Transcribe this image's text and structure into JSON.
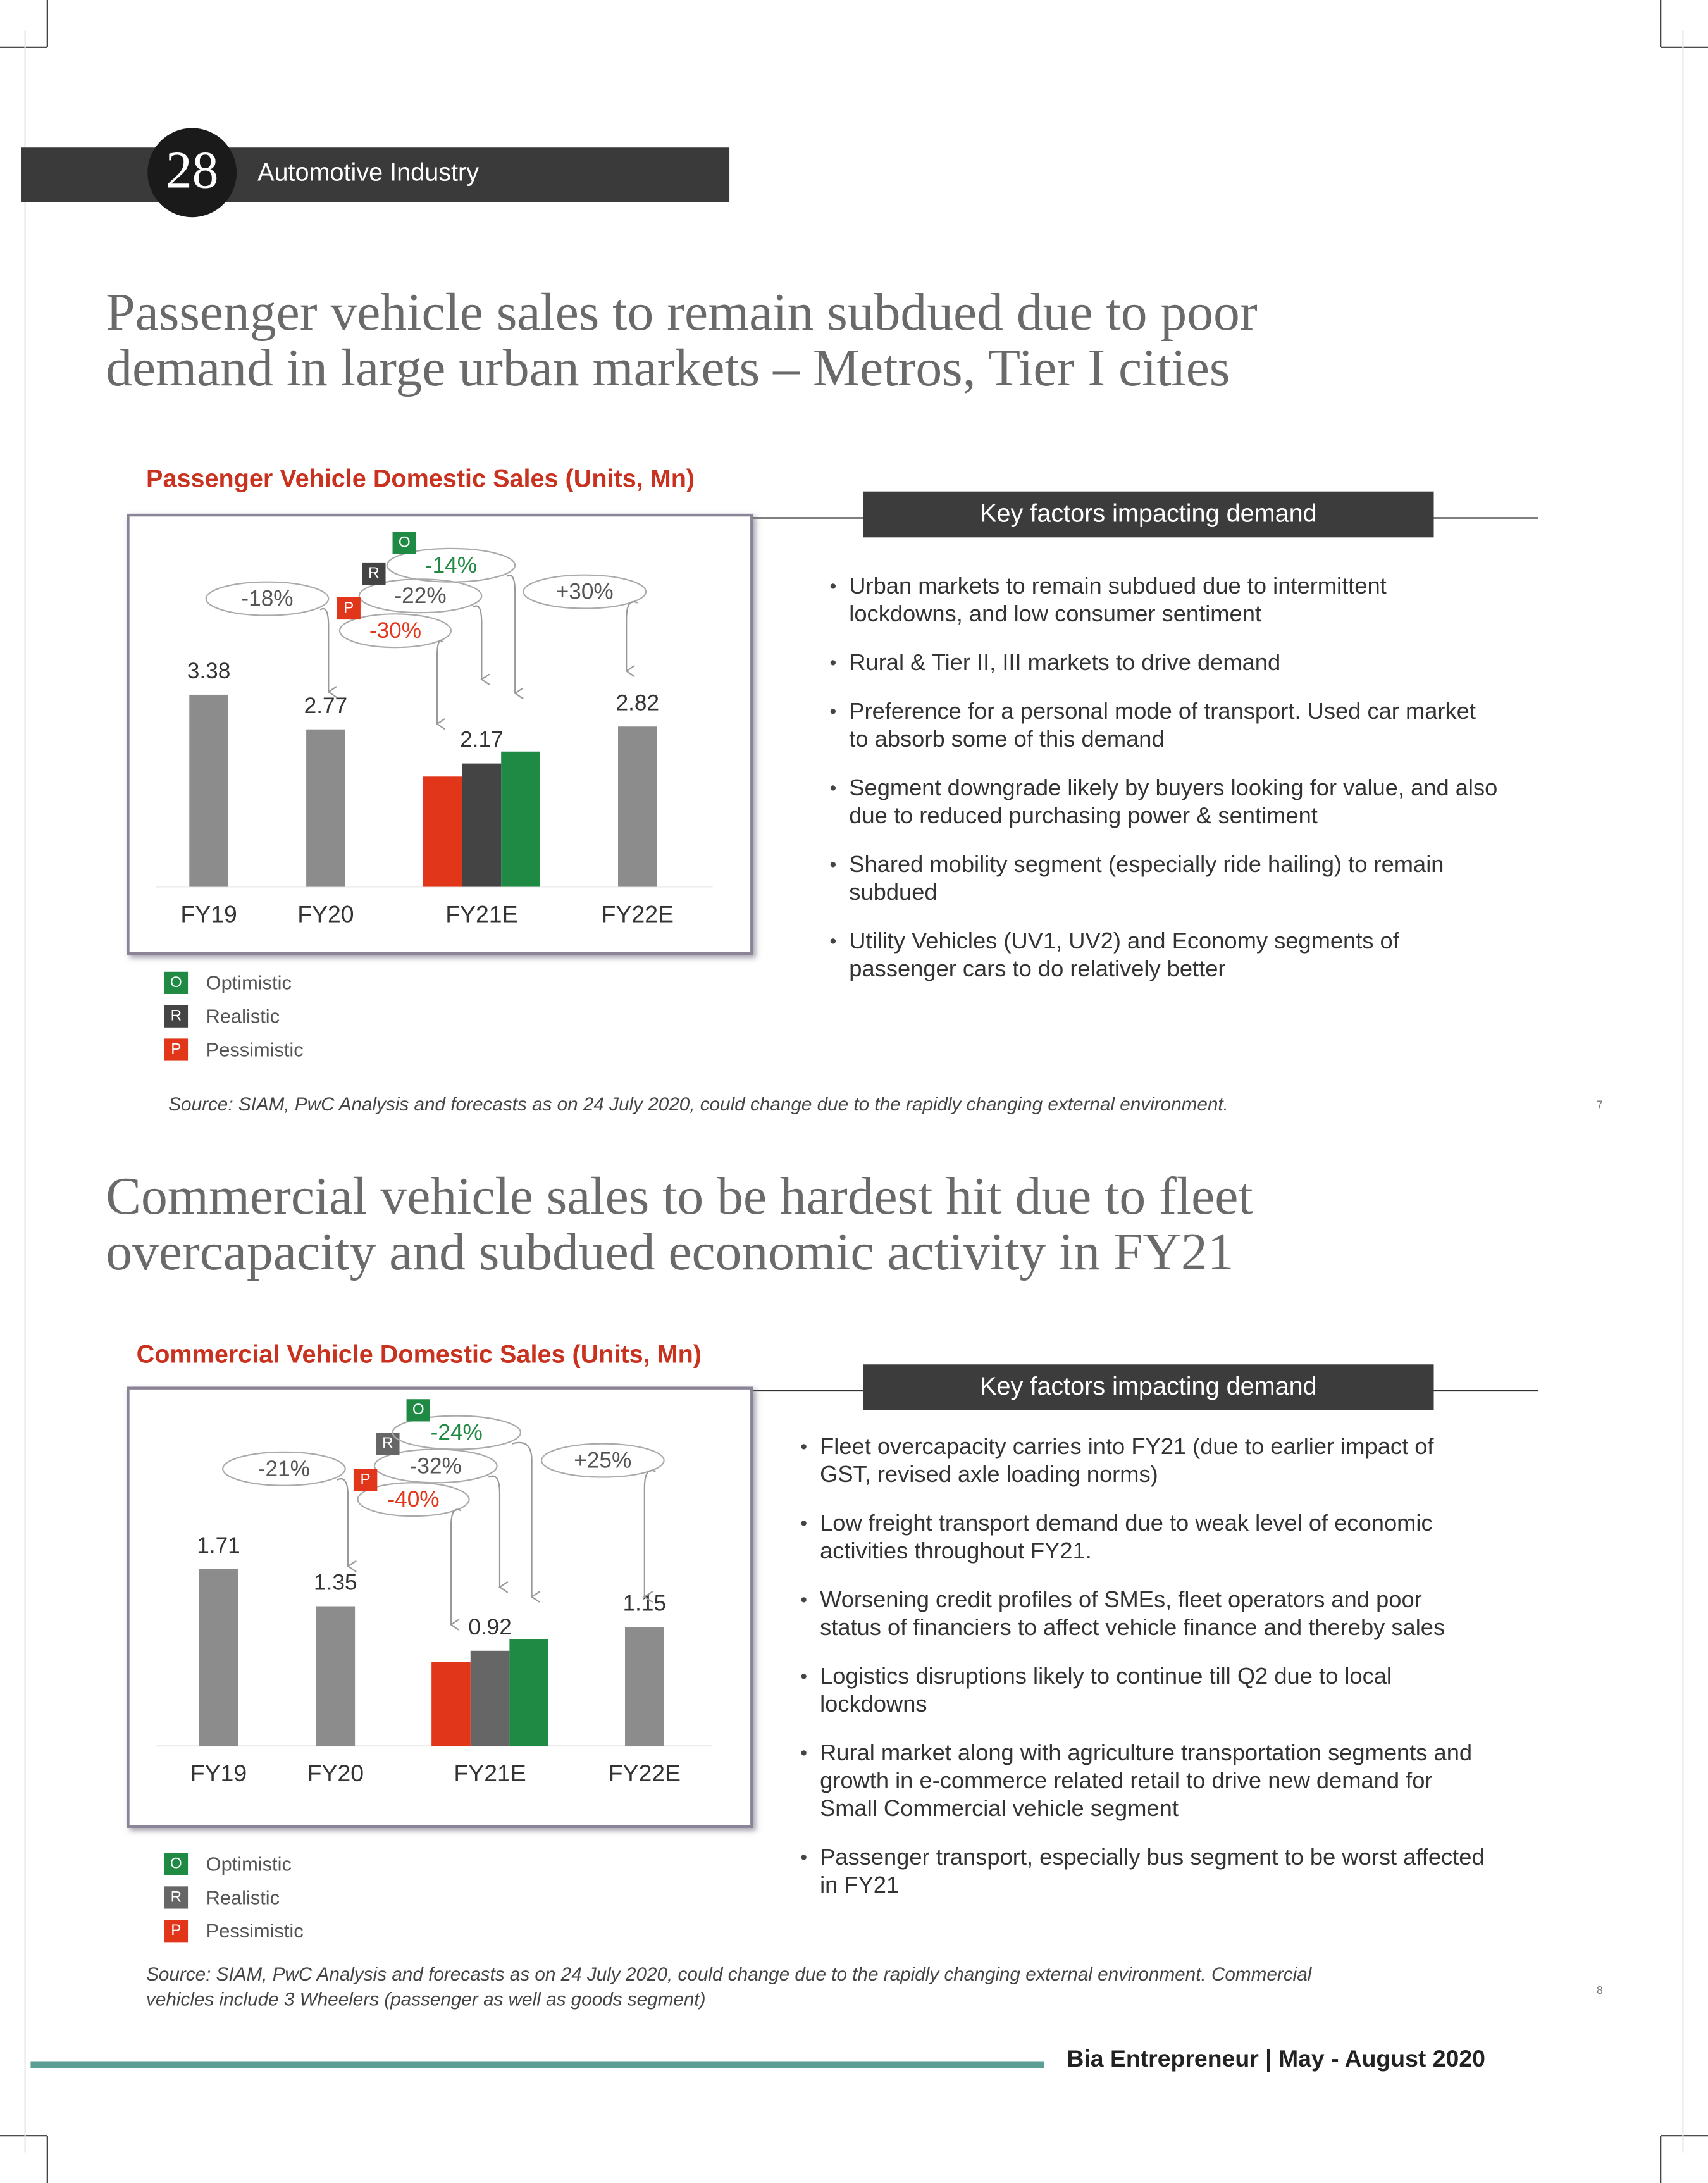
{
  "header": {
    "page_number": "28",
    "section": "Automotive Industry"
  },
  "sections": [
    {
      "heading": [
        "Passenger vehicle sales to remain subdued due to poor",
        "demand in large urban markets – Metros, Tier I cities"
      ],
      "key_factors": {
        "title": "Key factors impacting demand",
        "bullets": [
          [
            "Urban markets to remain subdued due to intermittent",
            "lockdowns, and low consumer sentiment"
          ],
          [
            "Rural & Tier II,  III  markets to drive demand"
          ],
          [
            "Preference for a  personal mode of transport. Used car market",
            "to absorb some of this demand"
          ],
          [
            "Segment downgrade likely by buyers looking for value, and also",
            "due to reduced purchasing power & sentiment"
          ],
          [
            "Shared mobility segment (especially ride hailing) to remain",
            "subdued"
          ],
          [
            "Utility Vehicles (UV1, UV2) and Economy segments of",
            "passenger cars to do relatively better"
          ]
        ]
      },
      "source": [
        "Source: SIAM, PwC Analysis and forecasts as on 24 July 2020, could change due to the rapidly changing external environment."
      ],
      "page_marker": "7"
    },
    {
      "heading": [
        "Commercial vehicle sales to be hardest hit due to fleet",
        "overcapacity and subdued economic activity in FY21"
      ],
      "key_factors": {
        "title": "Key factors impacting demand",
        "bullets": [
          [
            "Fleet overcapacity carries into FY21 (due to earlier impact of",
            "GST, revised axle loading norms)"
          ],
          [
            "Low freight transport demand due to weak level of economic",
            "activities throughout FY21."
          ],
          [
            "Worsening credit profiles of SMEs, fleet operators and poor",
            "status of financiers to affect vehicle finance and thereby sales"
          ],
          [
            "Logistics disruptions likely to continue till Q2 due to local",
            "lockdowns"
          ],
          [
            "Rural market along with agriculture transportation segments and",
            "growth in e-commerce related retail to drive new demand for",
            "Small Commercial vehicle segment"
          ],
          [
            "Passenger transport, especially bus segment to be worst affected",
            "in FY21"
          ]
        ]
      },
      "source": [
        "Source: SIAM, PwC Analysis and forecasts as on 24 July 2020, could change due to the rapidly changing external environment.  Commercial",
        "vehicles include 3 Wheelers (passenger as well as goods segment)"
      ],
      "page_marker": "8"
    }
  ],
  "chart_data": [
    {
      "type": "bar",
      "title": "Passenger Vehicle Domestic Sales (Units, Mn)",
      "categories": [
        "FY19",
        "FY20",
        "FY21E",
        "FY22E"
      ],
      "values": [
        3.38,
        2.77,
        null,
        2.82
      ],
      "color": "#8c8c8c",
      "series": [
        {
          "name": "Optimistic",
          "badge": "O",
          "color": "#1e8a44",
          "values": [
            null,
            null,
            2.38,
            null
          ]
        },
        {
          "name": "Realistic",
          "badge": "R",
          "color": "#444444",
          "values": [
            null,
            null,
            2.17,
            null
          ]
        },
        {
          "name": "Pessimistic",
          "badge": "P",
          "color": "#e2361a",
          "values": [
            null,
            null,
            1.94,
            null
          ]
        }
      ],
      "annotations": [
        {
          "text": "-18%",
          "color": "#555555"
        },
        {
          "text": "+30%",
          "color": "#555555"
        },
        {
          "text": "-22%",
          "color": "#555555"
        },
        {
          "text": "-30%",
          "color": "#e2361a"
        },
        {
          "text": "-14%",
          "color": "#1e8a44"
        }
      ]
    },
    {
      "type": "bar",
      "title": "Commercial Vehicle Domestic Sales (Units, Mn)",
      "categories": [
        "FY19",
        "FY20",
        "FY21E",
        "FY22E"
      ],
      "values": [
        1.71,
        1.35,
        null,
        1.15
      ],
      "color": "#8c8c8c",
      "series": [
        {
          "name": "Optimistic",
          "badge": "O",
          "color": "#1e8a44",
          "values": [
            null,
            null,
            1.03,
            null
          ]
        },
        {
          "name": "Realistic",
          "badge": "R",
          "color": "#666666",
          "values": [
            null,
            null,
            0.92,
            null
          ]
        },
        {
          "name": "Pessimistic",
          "badge": "P",
          "color": "#e2361a",
          "values": [
            null,
            null,
            0.81,
            null
          ]
        }
      ],
      "annotations": [
        {
          "text": "-21%",
          "color": "#555555"
        },
        {
          "text": "+25%",
          "color": "#555555"
        },
        {
          "text": "-32%",
          "color": "#555555"
        },
        {
          "text": "-40%",
          "color": "#e2361a"
        },
        {
          "text": "-24%",
          "color": "#1e8a44"
        }
      ]
    }
  ],
  "footer": "Bia Entrepreneur | May - August 2020"
}
